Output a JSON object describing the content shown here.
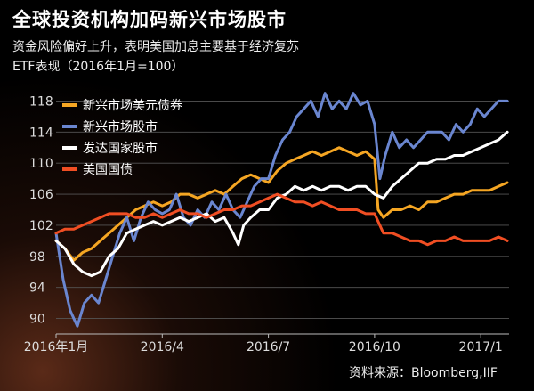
{
  "header": {
    "title": "全球投资机构加码新兴市场股市",
    "subtitle_line1": "资金风险偏好上升，表明美国加息主要基于经济复苏",
    "subtitle_line2": "ETF表现（2016年1月=100）"
  },
  "source": "资料来源：Bloomberg,IIF",
  "chart_data": {
    "type": "line",
    "ylim": [
      88,
      120
    ],
    "yticks": [
      90,
      94,
      98,
      102,
      106,
      110,
      114,
      118
    ],
    "xlim": [
      0,
      12.8
    ],
    "xticks": [
      {
        "label": "2016年1月",
        "at": 0
      },
      {
        "label": "2016/4",
        "at": 3
      },
      {
        "label": "2016/7",
        "at": 6
      },
      {
        "label": "2016/10",
        "at": 9
      },
      {
        "label": "2017/1",
        "at": 12
      }
    ],
    "grid": "horizontal",
    "legend_position": "top-left",
    "series": [
      {
        "name": "新兴市场美元债券",
        "color": "#f5a623",
        "points": [
          [
            0,
            100
          ],
          [
            0.25,
            99
          ],
          [
            0.5,
            97.5
          ],
          [
            0.75,
            98.5
          ],
          [
            1,
            99
          ],
          [
            1.25,
            100
          ],
          [
            1.5,
            101
          ],
          [
            1.75,
            102
          ],
          [
            2,
            103
          ],
          [
            2.25,
            104
          ],
          [
            2.5,
            104.5
          ],
          [
            2.75,
            105
          ],
          [
            3,
            104.5
          ],
          [
            3.25,
            105
          ],
          [
            3.5,
            106
          ],
          [
            3.75,
            106
          ],
          [
            4,
            105.5
          ],
          [
            4.25,
            106
          ],
          [
            4.5,
            106.5
          ],
          [
            4.75,
            106
          ],
          [
            5,
            107
          ],
          [
            5.25,
            108
          ],
          [
            5.5,
            108.5
          ],
          [
            5.75,
            108
          ],
          [
            6,
            107.5
          ],
          [
            6.25,
            109
          ],
          [
            6.5,
            110
          ],
          [
            6.75,
            110.5
          ],
          [
            7,
            111
          ],
          [
            7.25,
            111.5
          ],
          [
            7.5,
            111
          ],
          [
            7.75,
            111.5
          ],
          [
            8,
            112
          ],
          [
            8.25,
            111.5
          ],
          [
            8.5,
            111
          ],
          [
            8.75,
            111.5
          ],
          [
            9,
            110.5
          ],
          [
            9.1,
            104
          ],
          [
            9.25,
            103
          ],
          [
            9.5,
            104
          ],
          [
            9.75,
            104
          ],
          [
            10,
            104.5
          ],
          [
            10.25,
            104
          ],
          [
            10.5,
            105
          ],
          [
            10.75,
            105
          ],
          [
            11,
            105.5
          ],
          [
            11.25,
            106
          ],
          [
            11.5,
            106
          ],
          [
            11.75,
            106.5
          ],
          [
            12,
            106.5
          ],
          [
            12.25,
            106.5
          ],
          [
            12.5,
            107
          ],
          [
            12.75,
            107.5
          ]
        ]
      },
      {
        "name": "新兴市场股市",
        "color": "#6a86d0",
        "points": [
          [
            0,
            101
          ],
          [
            0.2,
            95
          ],
          [
            0.4,
            91
          ],
          [
            0.6,
            89
          ],
          [
            0.8,
            92
          ],
          [
            1,
            93
          ],
          [
            1.2,
            92
          ],
          [
            1.4,
            95
          ],
          [
            1.6,
            98
          ],
          [
            1.8,
            101
          ],
          [
            2,
            103
          ],
          [
            2.2,
            100
          ],
          [
            2.4,
            103
          ],
          [
            2.6,
            105
          ],
          [
            2.8,
            104
          ],
          [
            3,
            103.5
          ],
          [
            3.2,
            104
          ],
          [
            3.4,
            106
          ],
          [
            3.6,
            103
          ],
          [
            3.8,
            102
          ],
          [
            4,
            104
          ],
          [
            4.2,
            103
          ],
          [
            4.4,
            105
          ],
          [
            4.6,
            104
          ],
          [
            4.8,
            106
          ],
          [
            5,
            104
          ],
          [
            5.2,
            103
          ],
          [
            5.4,
            105
          ],
          [
            5.6,
            107
          ],
          [
            5.8,
            108
          ],
          [
            6,
            108
          ],
          [
            6.2,
            111
          ],
          [
            6.4,
            113
          ],
          [
            6.6,
            114
          ],
          [
            6.8,
            116
          ],
          [
            7,
            117
          ],
          [
            7.2,
            118
          ],
          [
            7.4,
            116
          ],
          [
            7.6,
            119
          ],
          [
            7.8,
            117
          ],
          [
            8,
            118
          ],
          [
            8.2,
            117
          ],
          [
            8.4,
            119
          ],
          [
            8.6,
            117.5
          ],
          [
            8.8,
            118
          ],
          [
            9,
            115
          ],
          [
            9.15,
            108
          ],
          [
            9.3,
            111
          ],
          [
            9.5,
            114
          ],
          [
            9.7,
            112
          ],
          [
            9.9,
            113
          ],
          [
            10.1,
            112
          ],
          [
            10.3,
            113
          ],
          [
            10.5,
            114
          ],
          [
            10.7,
            114
          ],
          [
            10.9,
            114
          ],
          [
            11.1,
            113
          ],
          [
            11.3,
            115
          ],
          [
            11.5,
            114
          ],
          [
            11.7,
            115
          ],
          [
            11.9,
            117
          ],
          [
            12.1,
            116
          ],
          [
            12.3,
            117
          ],
          [
            12.5,
            118
          ],
          [
            12.75,
            118
          ]
        ]
      },
      {
        "name": "发达国家股市",
        "color": "#ffffff",
        "points": [
          [
            0,
            100
          ],
          [
            0.25,
            99
          ],
          [
            0.5,
            97
          ],
          [
            0.75,
            96
          ],
          [
            1,
            95.5
          ],
          [
            1.25,
            96
          ],
          [
            1.5,
            98
          ],
          [
            1.75,
            99
          ],
          [
            2,
            101
          ],
          [
            2.25,
            101.5
          ],
          [
            2.5,
            102
          ],
          [
            2.75,
            102.5
          ],
          [
            3,
            102
          ],
          [
            3.25,
            102.5
          ],
          [
            3.5,
            103
          ],
          [
            3.75,
            102.5
          ],
          [
            4,
            103
          ],
          [
            4.25,
            103.5
          ],
          [
            4.5,
            102.5
          ],
          [
            4.75,
            103
          ],
          [
            5,
            101
          ],
          [
            5.15,
            99.5
          ],
          [
            5.3,
            102
          ],
          [
            5.5,
            103
          ],
          [
            5.75,
            104
          ],
          [
            6,
            104
          ],
          [
            6.25,
            105.5
          ],
          [
            6.5,
            106
          ],
          [
            6.75,
            107
          ],
          [
            7,
            106.5
          ],
          [
            7.25,
            107
          ],
          [
            7.5,
            106.5
          ],
          [
            7.75,
            107
          ],
          [
            8,
            107
          ],
          [
            8.25,
            106.5
          ],
          [
            8.5,
            107
          ],
          [
            8.75,
            107
          ],
          [
            9,
            106
          ],
          [
            9.25,
            105.5
          ],
          [
            9.5,
            107
          ],
          [
            9.75,
            108
          ],
          [
            10,
            109
          ],
          [
            10.25,
            110
          ],
          [
            10.5,
            110
          ],
          [
            10.75,
            110.5
          ],
          [
            11,
            110.5
          ],
          [
            11.25,
            111
          ],
          [
            11.5,
            111
          ],
          [
            11.75,
            111.5
          ],
          [
            12,
            112
          ],
          [
            12.25,
            112.5
          ],
          [
            12.5,
            113
          ],
          [
            12.75,
            114
          ]
        ]
      },
      {
        "name": "美国国债",
        "color": "#f04e23",
        "points": [
          [
            0,
            101
          ],
          [
            0.25,
            101.5
          ],
          [
            0.5,
            101.5
          ],
          [
            0.75,
            102
          ],
          [
            1,
            102.5
          ],
          [
            1.25,
            103
          ],
          [
            1.5,
            103.5
          ],
          [
            1.75,
            103.5
          ],
          [
            2,
            103.5
          ],
          [
            2.25,
            103
          ],
          [
            2.5,
            103
          ],
          [
            2.75,
            103.5
          ],
          [
            3,
            103
          ],
          [
            3.25,
            103.5
          ],
          [
            3.5,
            104
          ],
          [
            3.75,
            103.5
          ],
          [
            4,
            103.5
          ],
          [
            4.25,
            103
          ],
          [
            4.5,
            103.5
          ],
          [
            4.75,
            104
          ],
          [
            5,
            104
          ],
          [
            5.25,
            104.5
          ],
          [
            5.5,
            104.5
          ],
          [
            5.75,
            105
          ],
          [
            6,
            105.5
          ],
          [
            6.25,
            106
          ],
          [
            6.5,
            105.5
          ],
          [
            6.75,
            105
          ],
          [
            7,
            105
          ],
          [
            7.25,
            104.5
          ],
          [
            7.5,
            105
          ],
          [
            7.75,
            104.5
          ],
          [
            8,
            104
          ],
          [
            8.25,
            104
          ],
          [
            8.5,
            104
          ],
          [
            8.75,
            103.5
          ],
          [
            9,
            103.5
          ],
          [
            9.25,
            101
          ],
          [
            9.5,
            101
          ],
          [
            9.75,
            100.5
          ],
          [
            10,
            100
          ],
          [
            10.25,
            100
          ],
          [
            10.5,
            99.5
          ],
          [
            10.75,
            100
          ],
          [
            11,
            100
          ],
          [
            11.25,
            100.5
          ],
          [
            11.5,
            100
          ],
          [
            11.75,
            100
          ],
          [
            12,
            100
          ],
          [
            12.25,
            100
          ],
          [
            12.5,
            100.5
          ],
          [
            12.75,
            100
          ]
        ]
      }
    ]
  }
}
